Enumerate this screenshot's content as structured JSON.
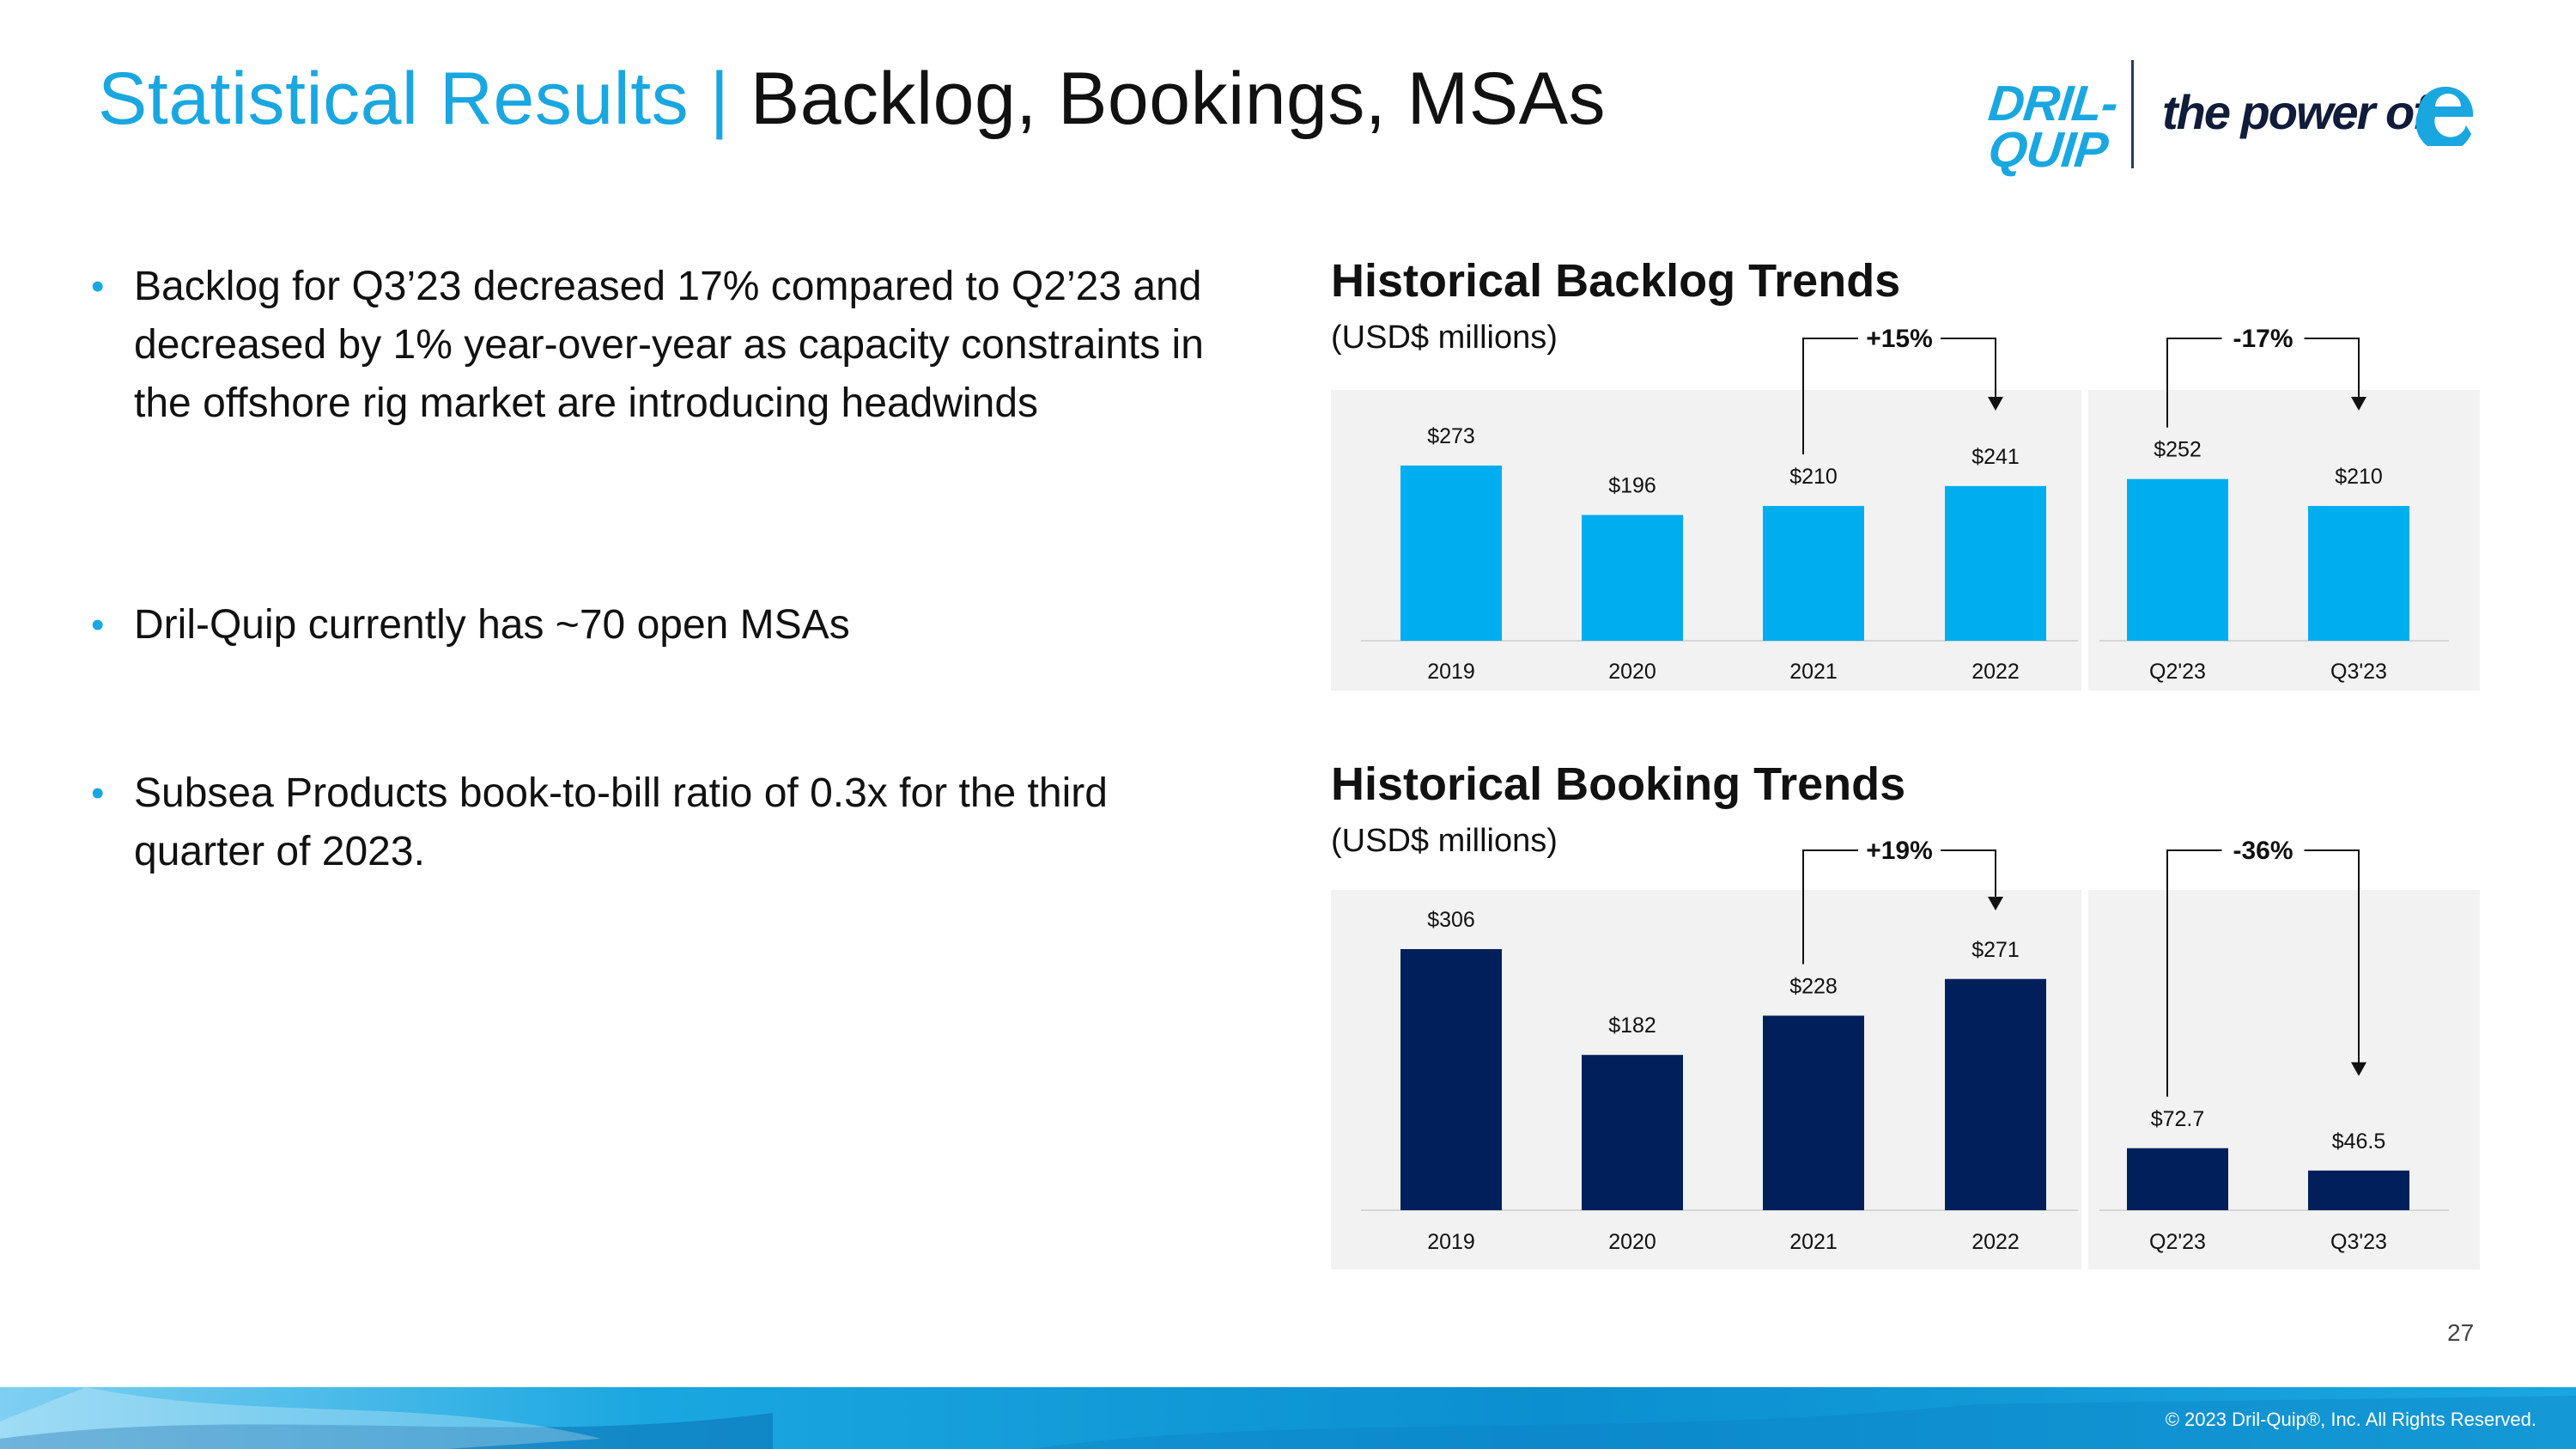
{
  "page": {
    "title_accent": "Statistical Results |",
    "title_main": "Backlog, Bookings, MSAs",
    "page_number": "27",
    "copyright": "© 2023 Dril-Quip®, Inc. All Rights Reserved."
  },
  "logo": {
    "line1": "DRIL-",
    "line2": "QUIP",
    "tagline": "the power of",
    "brand_color": "#1aa7e0",
    "dark_color": "#101c3a"
  },
  "bullets": [
    "Backlog for Q3’23 decreased 17% compared to Q2’23 and decreased by 1% year-over-year as capacity constraints in the offshore rig market are introducing headwinds",
    "Dril-Quip currently has ~70 open MSAs",
    "Subsea Products book-to-bill ratio of 0.3x for the third quarter of 2023."
  ],
  "chart_data": [
    {
      "type": "bar",
      "title": "Historical Backlog Trends",
      "subtitle": "(USD$ millions)",
      "categories": [
        "2019",
        "2020",
        "2021",
        "2022",
        "Q2'23",
        "Q3'23"
      ],
      "values": [
        273,
        196,
        210,
        241,
        252,
        210
      ],
      "labels": [
        "$273",
        "$196",
        "$210",
        "$241",
        "$252",
        "$210"
      ],
      "annotations": [
        {
          "text": "+15%",
          "from": "2021",
          "to": "2022"
        },
        {
          "text": "-17%",
          "from": "Q2'23",
          "to": "Q3'23"
        }
      ],
      "color": "#00aeef",
      "ylim": [
        0,
        300
      ]
    },
    {
      "type": "bar",
      "title": "Historical Booking Trends",
      "subtitle": "(USD$ millions)",
      "categories": [
        "2019",
        "2020",
        "2021",
        "2022",
        "Q2'23",
        "Q3'23"
      ],
      "values": [
        306,
        182,
        228,
        271,
        72.7,
        46.5
      ],
      "labels": [
        "$306",
        "$182",
        "$228",
        "$271",
        "$72.7",
        "$46.5"
      ],
      "annotations": [
        {
          "text": "+19%",
          "from": "2021",
          "to": "2022"
        },
        {
          "text": "-36%",
          "from": "Q2'23",
          "to": "Q3'23"
        }
      ],
      "color": "#001f5b",
      "ylim": [
        0,
        320
      ]
    }
  ]
}
